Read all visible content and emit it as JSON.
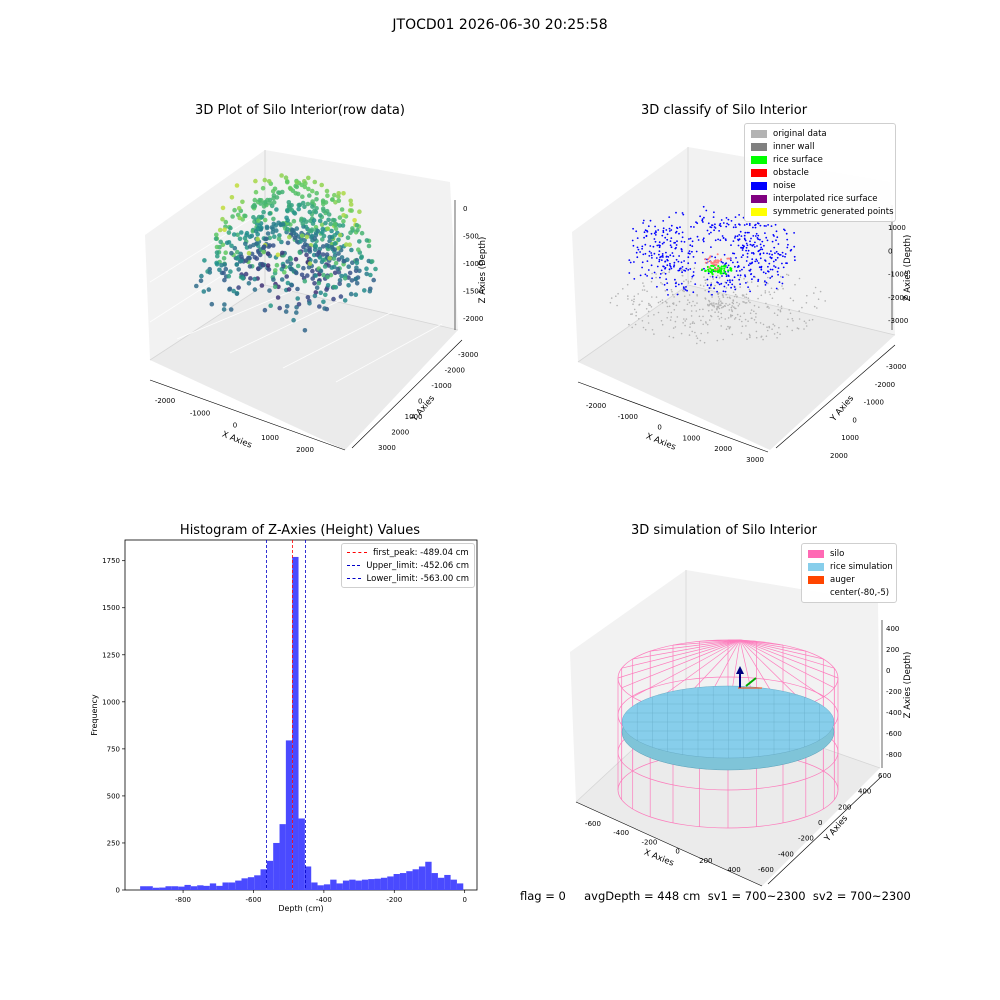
{
  "suptitle": "JTOCD01 2026-06-30 20:25:58",
  "footer": "flag = 0     avgDepth = 448 cm  sv1 = 700~2300  sv2 = 700~2300",
  "chart_data": [
    {
      "type": "scatter",
      "title": "3D Plot of Silo Interior(row data)",
      "xlabel": "X Axies",
      "ylabel": "Y Axies",
      "zlabel": "Z Axies (Depth)",
      "x_ticks": [
        "-2000",
        "-1000",
        "0",
        "1000",
        "2000"
      ],
      "y_ticks": [
        "-3000",
        "-2000",
        "-1000",
        "0",
        "1000",
        "2000",
        "3000"
      ],
      "z_ticks": [
        "-2000",
        "-1500",
        "-1000",
        "-500",
        "0"
      ],
      "xlim": [
        -2500,
        2500
      ],
      "ylim": [
        -3000,
        3000
      ],
      "zlim": [
        -2300,
        0
      ],
      "colormap": "viridis"
    },
    {
      "type": "scatter",
      "title": "3D classify of Silo Interior",
      "xlabel": "X Axies",
      "ylabel": "Y Axies",
      "zlabel": "Z Axies (Depth)",
      "x_ticks": [
        "-2000",
        "-1000",
        "0",
        "1000",
        "2000",
        "3000"
      ],
      "y_ticks": [
        "-3000",
        "-2000",
        "-1000",
        "0",
        "1000",
        "2000"
      ],
      "z_ticks": [
        "-3000",
        "-2000",
        "-1000",
        "0",
        "1000"
      ],
      "legend": [
        {
          "label": "original data",
          "color": "#b3b3b3"
        },
        {
          "label": "inner wall",
          "color": "#808080"
        },
        {
          "label": "rice surface",
          "color": "#00ff00"
        },
        {
          "label": "obstacle",
          "color": "#ff0000"
        },
        {
          "label": "noise",
          "color": "#0000ff"
        },
        {
          "label": "interpolated rice surface",
          "color": "#800080"
        },
        {
          "label": "symmetric generated points",
          "color": "#ffff00"
        }
      ],
      "legend_position": "upper right"
    },
    {
      "type": "bar",
      "title": "Histogram of Z-Axies (Height) Values",
      "xlabel": "Depth (cm)",
      "ylabel": "Frequency",
      "bar_color": "#4a4aff",
      "bin_width": 18,
      "x": [
        -922,
        -904,
        -886,
        -868,
        -850,
        -832,
        -814,
        -796,
        -778,
        -760,
        -742,
        -724,
        -706,
        -688,
        -670,
        -652,
        -634,
        -616,
        -598,
        -580,
        -562,
        -544,
        -526,
        -508,
        -490,
        -472,
        -454,
        -436,
        -418,
        -400,
        -382,
        -364,
        -346,
        -328,
        -310,
        -292,
        -274,
        -256,
        -238,
        -220,
        -202,
        -184,
        -166,
        -148,
        -130,
        -112,
        -94,
        -76,
        -58,
        -40,
        -22,
        -4
      ],
      "y": [
        20,
        20,
        12,
        13,
        20,
        20,
        18,
        27,
        20,
        25,
        22,
        35,
        22,
        40,
        40,
        50,
        62,
        68,
        78,
        110,
        155,
        250,
        350,
        795,
        1770,
        380,
        125,
        40,
        25,
        30,
        55,
        35,
        50,
        55,
        50,
        55,
        58,
        60,
        65,
        72,
        85,
        90,
        100,
        110,
        125,
        150,
        90,
        65,
        80,
        55,
        35,
        0
      ],
      "xlim": [
        -965,
        35
      ],
      "ylim": [
        0,
        1860
      ],
      "x_ticks": [
        -800,
        -600,
        -400,
        -200,
        0
      ],
      "y_ticks": [
        0,
        250,
        500,
        750,
        1000,
        1250,
        1500,
        1750
      ],
      "vlines": [
        {
          "label": "first_peak: -489.04 cm",
          "x": -489.04,
          "color": "#ff0000"
        },
        {
          "label": "Upper_limit: -452.06 cm",
          "x": -452.06,
          "color": "#0000c8"
        },
        {
          "label": "Lower_limit: -563.00 cm",
          "x": -563.0,
          "color": "#0000c8"
        }
      ],
      "legend_position": "upper right"
    },
    {
      "type": "scatter",
      "title": "3D simulation of Silo Interior",
      "xlabel": "X Axies",
      "ylabel": "Y Axies",
      "zlabel": "Z Axies (Depth)",
      "x_ticks": [
        "-600",
        "-400",
        "-200",
        "0",
        "200",
        "400"
      ],
      "y_ticks": [
        "-600",
        "-400",
        "-200",
        "0",
        "200",
        "400",
        "600"
      ],
      "z_ticks": [
        "-800",
        "-600",
        "-400",
        "-200",
        "0",
        "200",
        "400"
      ],
      "legend": [
        {
          "label": "silo",
          "color": "#ff69b4"
        },
        {
          "label": "rice simulation",
          "color": "#87ceeb"
        },
        {
          "label": "auger",
          "color": "#ff4500"
        },
        {
          "label": "center(-80,-5)",
          "color": ""
        }
      ],
      "legend_position": "upper right"
    }
  ]
}
